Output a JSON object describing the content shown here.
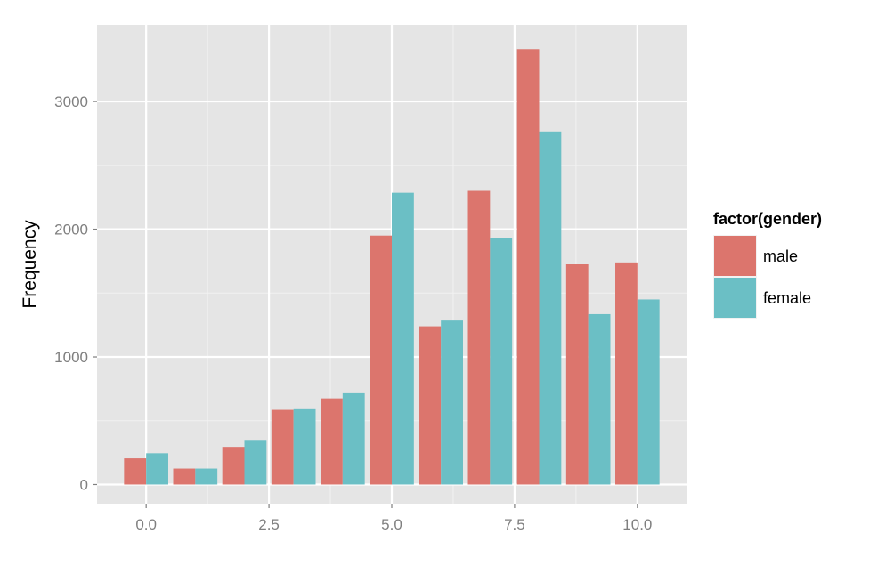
{
  "chart_data": {
    "type": "bar",
    "title": "",
    "xlabel": "",
    "ylabel": "Frequency",
    "categories": [
      0,
      1,
      2,
      3,
      4,
      5,
      6,
      7,
      8,
      9,
      10
    ],
    "series": [
      {
        "name": "male",
        "color": "#dc756d",
        "values": [
          205,
          125,
          295,
          585,
          675,
          1950,
          1240,
          2300,
          3410,
          1725,
          1740
        ]
      },
      {
        "name": "female",
        "color": "#6bbfc5",
        "values": [
          245,
          125,
          350,
          590,
          715,
          2285,
          1285,
          1930,
          2765,
          1335,
          1450
        ]
      }
    ],
    "xlim": [
      -1,
      11
    ],
    "ylim": [
      -150,
      3600
    ],
    "x_ticks": [
      0.0,
      2.5,
      5.0,
      7.5,
      10.0
    ],
    "x_tick_labels": [
      "0.0",
      "2.5",
      "5.0",
      "7.5",
      "10.0"
    ],
    "y_ticks": [
      0,
      1000,
      2000,
      3000
    ],
    "y_tick_labels": [
      "0",
      "1000",
      "2000",
      "3000"
    ],
    "grid": true,
    "legend": {
      "title": "factor(gender)",
      "position": "right",
      "entries": [
        "male",
        "female"
      ]
    },
    "panel_background": "#e5e5e5",
    "grid_color": "#ffffff"
  }
}
